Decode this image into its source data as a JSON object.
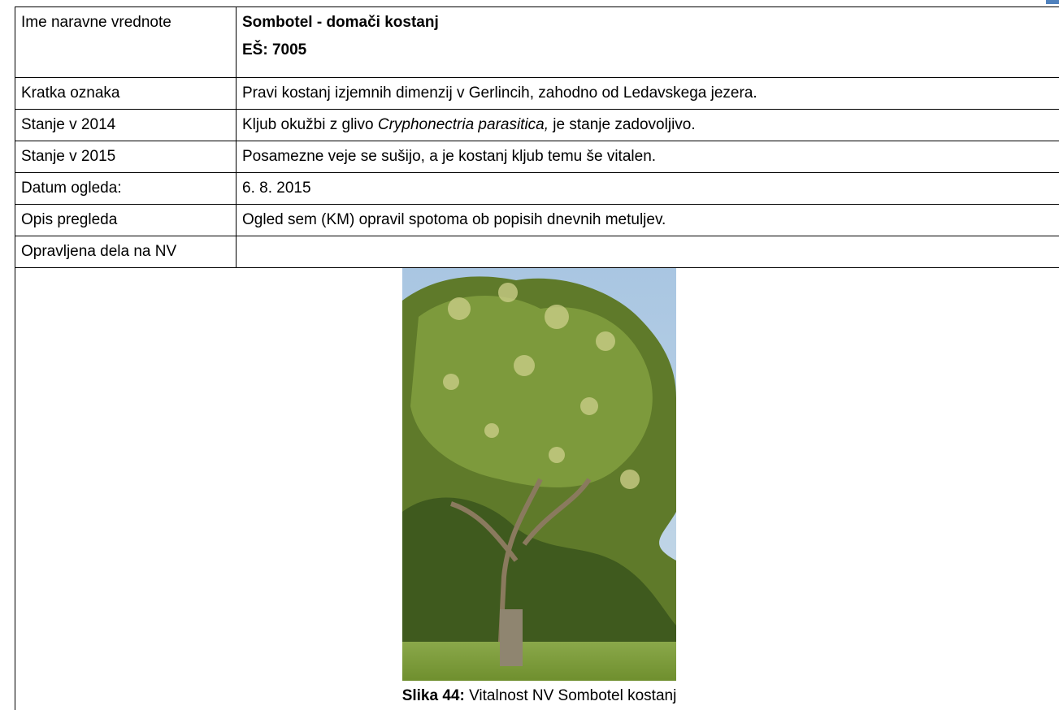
{
  "table": {
    "rows": [
      {
        "label": "Ime naravne vrednote",
        "value_lines": [
          "Sombotel - domači kostanj",
          "EŠ: 7005"
        ]
      },
      {
        "label": "Kratka oznaka",
        "value_parts": [
          "Pravi kostanj izjemnih dimenzij v Gerlincih, zahodno od Ledavskega jezera."
        ]
      },
      {
        "label": "Stanje v 2014",
        "value_parts": [
          "Kljub okužbi z glivo ",
          "Cryphonectria parasitica,",
          " je stanje zadovoljivo."
        ]
      },
      {
        "label": "Stanje v 2015",
        "value_parts": [
          "Posamezne veje se sušijo, a je kostanj kljub temu še vitalen."
        ]
      },
      {
        "label": "Datum ogleda:",
        "value_parts": [
          "6. 8. 2015"
        ]
      },
      {
        "label": "Opis pregleda",
        "value_parts": [
          "Ogled sem (KM) opravil spotoma ob popisih dnevnih metuljev."
        ]
      },
      {
        "label": "Opravljena dela na NV",
        "value_parts": []
      }
    ]
  },
  "figure": {
    "caption_label": "Slika 44:",
    "caption_text": " Vitalnost NV Sombotel kostanj"
  }
}
